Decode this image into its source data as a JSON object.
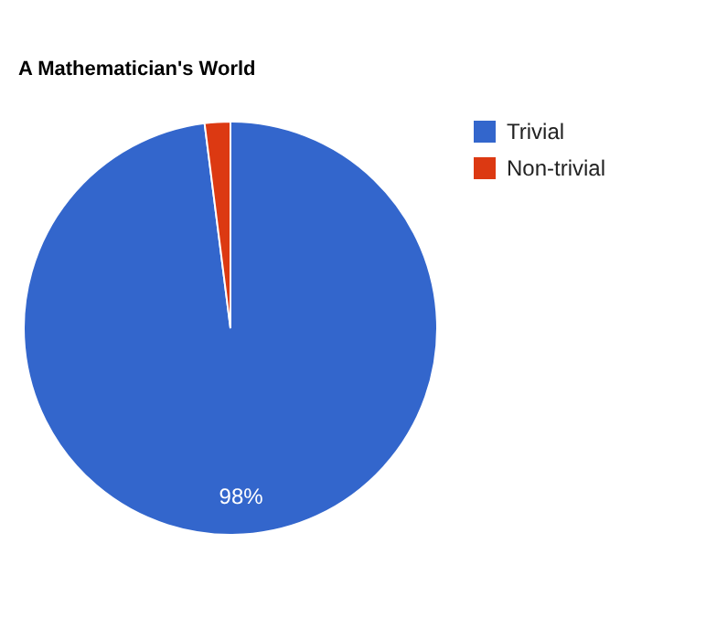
{
  "chart_data": {
    "type": "pie",
    "title": "A Mathematician's World",
    "categories": [
      "Trivial",
      "Non-trivial"
    ],
    "values": [
      98,
      2
    ],
    "colors": [
      "#3366cc",
      "#dc3912"
    ],
    "value_labels": [
      "98%",
      null
    ],
    "legend": "top right"
  }
}
